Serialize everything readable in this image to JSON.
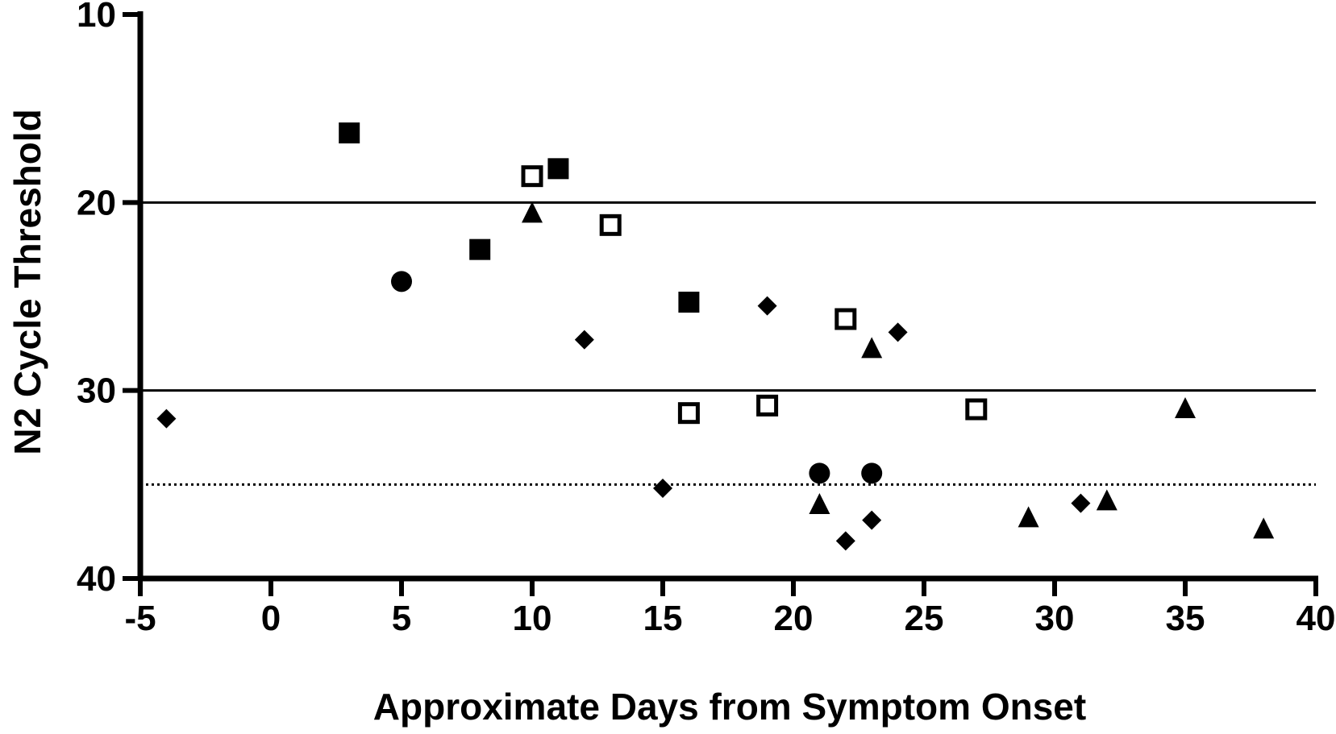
{
  "chart_data": {
    "type": "scatter",
    "title": "",
    "xlabel": "Approximate Days from Symptom Onset",
    "ylabel": "N2 Cycle Threshold",
    "xlim": [
      -5,
      40
    ],
    "ylim": [
      10,
      40
    ],
    "y_inverted": true,
    "xticks": [
      -5,
      0,
      5,
      10,
      15,
      20,
      25,
      30,
      35,
      40
    ],
    "yticks": [
      10,
      20,
      30,
      40
    ],
    "grid": false,
    "legend": "none",
    "reference_lines": [
      {
        "y": 20,
        "style": "solid"
      },
      {
        "y": 30,
        "style": "solid"
      },
      {
        "y": 35,
        "style": "dotted"
      }
    ],
    "series": [
      {
        "marker": "filled-square",
        "points": [
          [
            3,
            16.3
          ],
          [
            11,
            18.2
          ],
          [
            8,
            22.5
          ],
          [
            16,
            25.3
          ]
        ]
      },
      {
        "marker": "open-square",
        "points": [
          [
            10,
            18.6
          ],
          [
            13,
            21.2
          ],
          [
            22,
            26.2
          ],
          [
            16,
            31.2
          ],
          [
            19,
            30.8
          ],
          [
            27,
            31.0
          ]
        ]
      },
      {
        "marker": "filled-circle",
        "points": [
          [
            5,
            24.2
          ],
          [
            21,
            34.4
          ],
          [
            23,
            34.4
          ]
        ]
      },
      {
        "marker": "filled-triangle",
        "points": [
          [
            10,
            20.6
          ],
          [
            23,
            27.8
          ],
          [
            21,
            36.1
          ],
          [
            29,
            36.8
          ],
          [
            32,
            35.9
          ],
          [
            35,
            31.0
          ],
          [
            38,
            37.4
          ]
        ]
      },
      {
        "marker": "filled-diamond",
        "points": [
          [
            -4,
            31.5
          ],
          [
            12,
            27.3
          ],
          [
            15,
            35.2
          ],
          [
            19,
            25.5
          ],
          [
            22,
            38.0
          ],
          [
            23,
            36.9
          ],
          [
            24,
            26.9
          ],
          [
            31,
            36.0
          ]
        ]
      }
    ]
  }
}
